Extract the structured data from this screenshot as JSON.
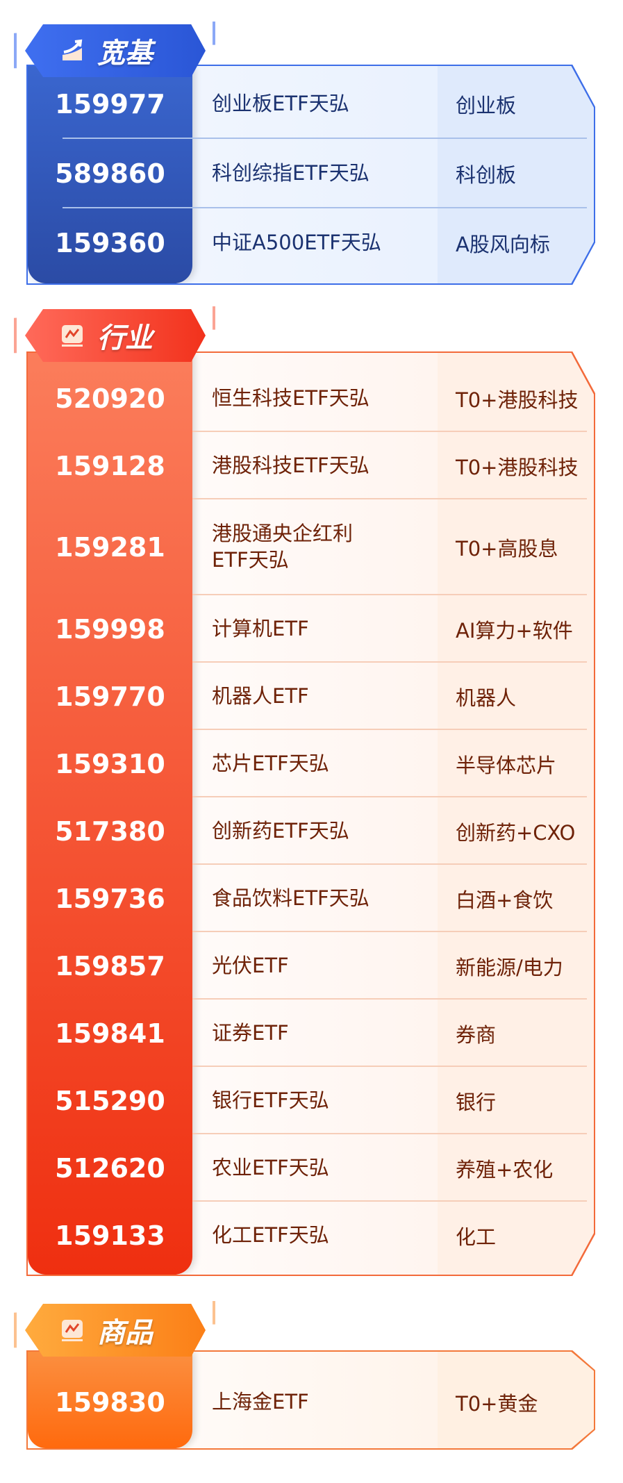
{
  "colors": {
    "broad": "#2f5bc8",
    "industry": "#f2431c",
    "commodity": "#fb7a18"
  },
  "sections": [
    {
      "title": "宽基",
      "icon": "trend-up-icon",
      "rows": [
        {
          "code": "159977",
          "name": "创业板ETF天弘",
          "tag": "创业板"
        },
        {
          "code": "589860",
          "name": "科创综指ETF天弘",
          "tag": "科创板"
        },
        {
          "code": "159360",
          "name": "中证A500ETF天弘",
          "tag": "A股风向标"
        }
      ]
    },
    {
      "title": "行业",
      "icon": "line-chart-icon",
      "rows": [
        {
          "code": "520920",
          "name": "恒生科技ETF天弘",
          "tag": "T0+港股科技"
        },
        {
          "code": "159128",
          "name": "港股科技ETF天弘",
          "tag": "T0+港股科技"
        },
        {
          "code": "159281",
          "name": "港股通央企红利ETF天弘",
          "tag": "T0+高股息"
        },
        {
          "code": "159998",
          "name": "计算机ETF",
          "tag": "AI算力+软件"
        },
        {
          "code": "159770",
          "name": "机器人ETF",
          "tag": "机器人"
        },
        {
          "code": "159310",
          "name": "芯片ETF天弘",
          "tag": "半导体芯片"
        },
        {
          "code": "517380",
          "name": "创新药ETF天弘",
          "tag": "创新药+CXO"
        },
        {
          "code": "159736",
          "name": "食品饮料ETF天弘",
          "tag": "白酒+食饮"
        },
        {
          "code": "159857",
          "name": "光伏ETF",
          "tag": "新能源/电力"
        },
        {
          "code": "159841",
          "name": "证券ETF",
          "tag": "券商"
        },
        {
          "code": "515290",
          "name": "银行ETF天弘",
          "tag": "银行"
        },
        {
          "code": "512620",
          "name": "农业ETF天弘",
          "tag": "养殖+农化"
        },
        {
          "code": "159133",
          "name": "化工ETF天弘",
          "tag": "化工"
        }
      ]
    },
    {
      "title": "商品",
      "icon": "line-chart-icon",
      "rows": [
        {
          "code": "159830",
          "name": "上海金ETF",
          "tag": "T0+黄金"
        }
      ]
    }
  ]
}
